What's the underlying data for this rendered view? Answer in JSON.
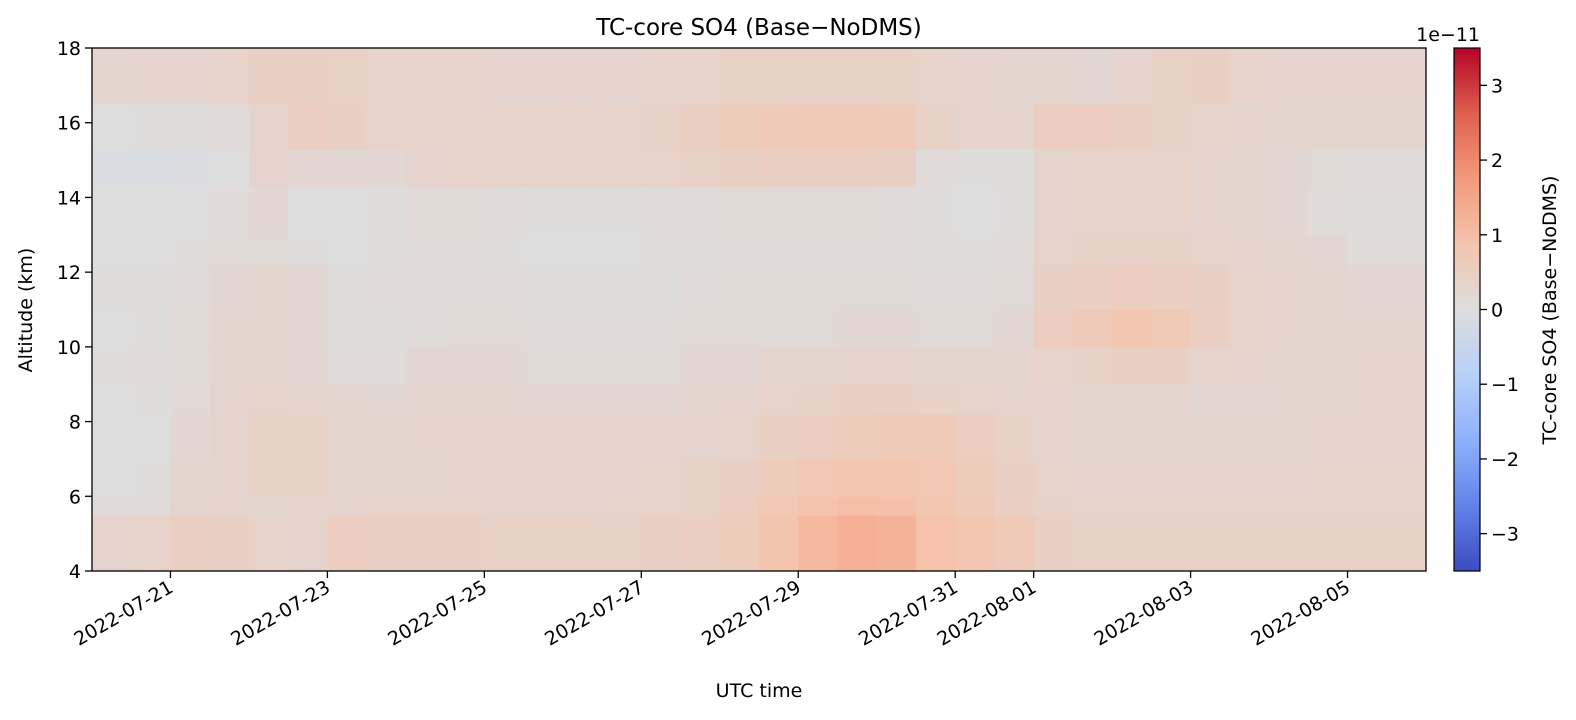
{
  "chart_data": {
    "type": "heatmap",
    "title": "TC-core SO4 (Base−NoDMS)",
    "xlabel": "UTC time",
    "ylabel": "Altitude (km)",
    "x_domain": [
      "2022-07-20T00:00",
      "2022-08-06T00:00"
    ],
    "x_ticks": [
      "2022-07-21",
      "2022-07-23",
      "2022-07-25",
      "2022-07-27",
      "2022-07-29",
      "2022-07-31",
      "2022-08-01",
      "2022-08-03",
      "2022-08-05"
    ],
    "ylim": [
      4,
      18
    ],
    "y_ticks": [
      "4",
      "6",
      "8",
      "10",
      "12",
      "14",
      "16",
      "18"
    ],
    "colormap": "coolwarm",
    "colorbar": {
      "label": "TC-core SO4 (Base−NoDMS)",
      "range": [
        -3.5e-11,
        3.5e-11
      ],
      "ticks": [
        "−3",
        "−2",
        "−1",
        "0",
        "1",
        "2",
        "3"
      ],
      "offset_text": "1e−11"
    },
    "altitude_bands_km": [
      4,
      5.5,
      6,
      7,
      8.2,
      9,
      10,
      11,
      12.2,
      13,
      14.3,
      15.3,
      16.5,
      18
    ],
    "value_units": "1e-11",
    "grid_columns": [
      {
        "t": "2022-07-20T00:00",
        "v": [
          0.3,
          0.1,
          0.0,
          0.0,
          0.0,
          0.05,
          0.0,
          0.05,
          0.0,
          0.0,
          -0.1,
          0.0,
          0.25
        ]
      },
      {
        "t": "2022-07-20T12:00",
        "v": [
          0.35,
          0.1,
          0.05,
          0.0,
          0.05,
          0.1,
          0.05,
          0.05,
          0.0,
          0.0,
          -0.1,
          0.05,
          0.3
        ]
      },
      {
        "t": "2022-07-21T00:00",
        "v": [
          0.5,
          0.3,
          0.25,
          0.2,
          0.15,
          0.15,
          0.15,
          0.1,
          0.05,
          0.0,
          -0.05,
          0.05,
          0.3
        ]
      },
      {
        "t": "2022-07-21T12:00",
        "v": [
          0.45,
          0.3,
          0.3,
          0.3,
          0.3,
          0.25,
          0.25,
          0.2,
          0.15,
          0.1,
          0.0,
          0.1,
          0.35
        ]
      },
      {
        "t": "2022-07-22T00:00",
        "v": [
          0.35,
          0.25,
          0.4,
          0.4,
          0.35,
          0.25,
          0.25,
          0.25,
          0.15,
          0.2,
          0.3,
          0.3,
          0.45
        ]
      },
      {
        "t": "2022-07-22T12:00",
        "v": [
          0.3,
          0.3,
          0.4,
          0.4,
          0.3,
          0.2,
          0.2,
          0.2,
          0.05,
          0.0,
          0.2,
          0.5,
          0.45
        ]
      },
      {
        "t": "2022-07-23T00:00",
        "v": [
          0.55,
          0.3,
          0.25,
          0.25,
          0.25,
          0.1,
          0.05,
          0.05,
          0.0,
          0.0,
          0.2,
          0.45,
          0.4
        ]
      },
      {
        "t": "2022-07-23T12:00",
        "v": [
          0.45,
          0.35,
          0.25,
          0.25,
          0.2,
          0.1,
          0.05,
          0.1,
          0.05,
          0.05,
          0.2,
          0.35,
          0.35
        ]
      },
      {
        "t": "2022-07-24T00:00",
        "v": [
          0.45,
          0.35,
          0.25,
          0.3,
          0.25,
          0.2,
          0.1,
          0.1,
          0.1,
          0.15,
          0.3,
          0.35,
          0.35
        ]
      },
      {
        "t": "2022-07-24T12:00",
        "v": [
          0.45,
          0.35,
          0.3,
          0.3,
          0.25,
          0.2,
          0.15,
          0.1,
          0.1,
          0.15,
          0.35,
          0.35,
          0.35
        ]
      },
      {
        "t": "2022-07-25T00:00",
        "v": [
          0.4,
          0.3,
          0.3,
          0.3,
          0.25,
          0.2,
          0.15,
          0.1,
          0.05,
          0.1,
          0.35,
          0.35,
          0.3
        ]
      },
      {
        "t": "2022-07-25T12:00",
        "v": [
          0.4,
          0.3,
          0.3,
          0.3,
          0.2,
          0.15,
          0.1,
          0.05,
          0.0,
          0.05,
          0.35,
          0.35,
          0.3
        ]
      },
      {
        "t": "2022-07-26T00:00",
        "v": [
          0.4,
          0.3,
          0.3,
          0.3,
          0.2,
          0.15,
          0.1,
          0.05,
          0.0,
          0.05,
          0.35,
          0.35,
          0.3
        ]
      },
      {
        "t": "2022-07-26T12:00",
        "v": [
          0.4,
          0.35,
          0.3,
          0.3,
          0.2,
          0.15,
          0.1,
          0.05,
          0.0,
          0.05,
          0.35,
          0.35,
          0.3
        ]
      },
      {
        "t": "2022-07-27T00:00",
        "v": [
          0.45,
          0.35,
          0.35,
          0.3,
          0.2,
          0.15,
          0.1,
          0.05,
          0.05,
          0.1,
          0.35,
          0.4,
          0.35
        ]
      },
      {
        "t": "2022-07-27T12:00",
        "v": [
          0.5,
          0.4,
          0.4,
          0.3,
          0.25,
          0.2,
          0.15,
          0.1,
          0.05,
          0.1,
          0.4,
          0.5,
          0.35
        ]
      },
      {
        "t": "2022-07-28T00:00",
        "v": [
          0.6,
          0.55,
          0.45,
          0.35,
          0.3,
          0.2,
          0.15,
          0.15,
          0.1,
          0.15,
          0.45,
          0.6,
          0.4
        ]
      },
      {
        "t": "2022-07-28T12:00",
        "v": [
          0.85,
          0.75,
          0.6,
          0.45,
          0.35,
          0.25,
          0.15,
          0.15,
          0.1,
          0.15,
          0.5,
          0.65,
          0.4
        ]
      },
      {
        "t": "2022-07-29T00:00",
        "v": [
          1.1,
          0.9,
          0.75,
          0.55,
          0.4,
          0.25,
          0.15,
          0.15,
          0.1,
          0.15,
          0.5,
          0.7,
          0.4
        ]
      },
      {
        "t": "2022-07-29T12:00",
        "v": [
          1.3,
          1.0,
          0.8,
          0.6,
          0.45,
          0.3,
          0.2,
          0.15,
          0.1,
          0.15,
          0.5,
          0.7,
          0.4
        ]
      },
      {
        "t": "2022-07-30T00:00",
        "v": [
          1.2,
          0.95,
          0.8,
          0.65,
          0.45,
          0.3,
          0.2,
          0.15,
          0.1,
          0.1,
          0.45,
          0.65,
          0.4
        ]
      },
      {
        "t": "2022-07-30T12:00",
        "v": [
          0.9,
          0.8,
          0.75,
          0.65,
          0.4,
          0.25,
          0.15,
          0.1,
          0.05,
          0.05,
          0.1,
          0.4,
          0.35
        ]
      },
      {
        "t": "2022-07-31T00:00",
        "v": [
          0.8,
          0.65,
          0.6,
          0.55,
          0.35,
          0.25,
          0.15,
          0.1,
          0.05,
          0.0,
          0.05,
          0.3,
          0.3
        ]
      },
      {
        "t": "2022-07-31T12:00",
        "v": [
          0.65,
          0.5,
          0.45,
          0.4,
          0.3,
          0.25,
          0.2,
          0.15,
          0.1,
          0.05,
          0.05,
          0.3,
          0.25
        ]
      },
      {
        "t": "2022-08-01T00:00",
        "v": [
          0.45,
          0.4,
          0.35,
          0.3,
          0.3,
          0.35,
          0.55,
          0.45,
          0.35,
          0.3,
          0.3,
          0.55,
          0.25
        ]
      },
      {
        "t": "2022-08-01T12:00",
        "v": [
          0.4,
          0.35,
          0.3,
          0.25,
          0.25,
          0.4,
          0.65,
          0.5,
          0.4,
          0.35,
          0.35,
          0.55,
          0.2
        ]
      },
      {
        "t": "2022-08-02T00:00",
        "v": [
          0.4,
          0.35,
          0.3,
          0.25,
          0.25,
          0.45,
          0.8,
          0.55,
          0.4,
          0.35,
          0.35,
          0.5,
          0.3
        ]
      },
      {
        "t": "2022-08-02T12:00",
        "v": [
          0.4,
          0.35,
          0.3,
          0.25,
          0.25,
          0.45,
          0.7,
          0.5,
          0.4,
          0.35,
          0.35,
          0.4,
          0.4
        ]
      },
      {
        "t": "2022-08-03T00:00",
        "v": [
          0.4,
          0.35,
          0.3,
          0.25,
          0.2,
          0.35,
          0.5,
          0.45,
          0.35,
          0.3,
          0.3,
          0.35,
          0.45
        ]
      },
      {
        "t": "2022-08-03T12:00",
        "v": [
          0.4,
          0.35,
          0.3,
          0.25,
          0.2,
          0.3,
          0.35,
          0.35,
          0.3,
          0.25,
          0.25,
          0.3,
          0.35
        ]
      },
      {
        "t": "2022-08-04T00:00",
        "v": [
          0.4,
          0.35,
          0.3,
          0.25,
          0.25,
          0.25,
          0.3,
          0.3,
          0.25,
          0.2,
          0.2,
          0.25,
          0.3
        ]
      },
      {
        "t": "2022-08-04T12:00",
        "v": [
          0.4,
          0.35,
          0.35,
          0.3,
          0.25,
          0.25,
          0.25,
          0.25,
          0.2,
          0.1,
          0.15,
          0.25,
          0.3
        ]
      },
      {
        "t": "2022-08-05T00:00",
        "v": [
          0.4,
          0.35,
          0.35,
          0.3,
          0.3,
          0.3,
          0.25,
          0.2,
          0.1,
          0.05,
          0.1,
          0.25,
          0.3
        ]
      },
      {
        "t": "2022-08-05T12:00",
        "v": [
          0.4,
          0.35,
          0.35,
          0.3,
          0.3,
          0.3,
          0.25,
          0.2,
          0.1,
          0.05,
          0.1,
          0.25,
          0.3
        ]
      }
    ]
  }
}
